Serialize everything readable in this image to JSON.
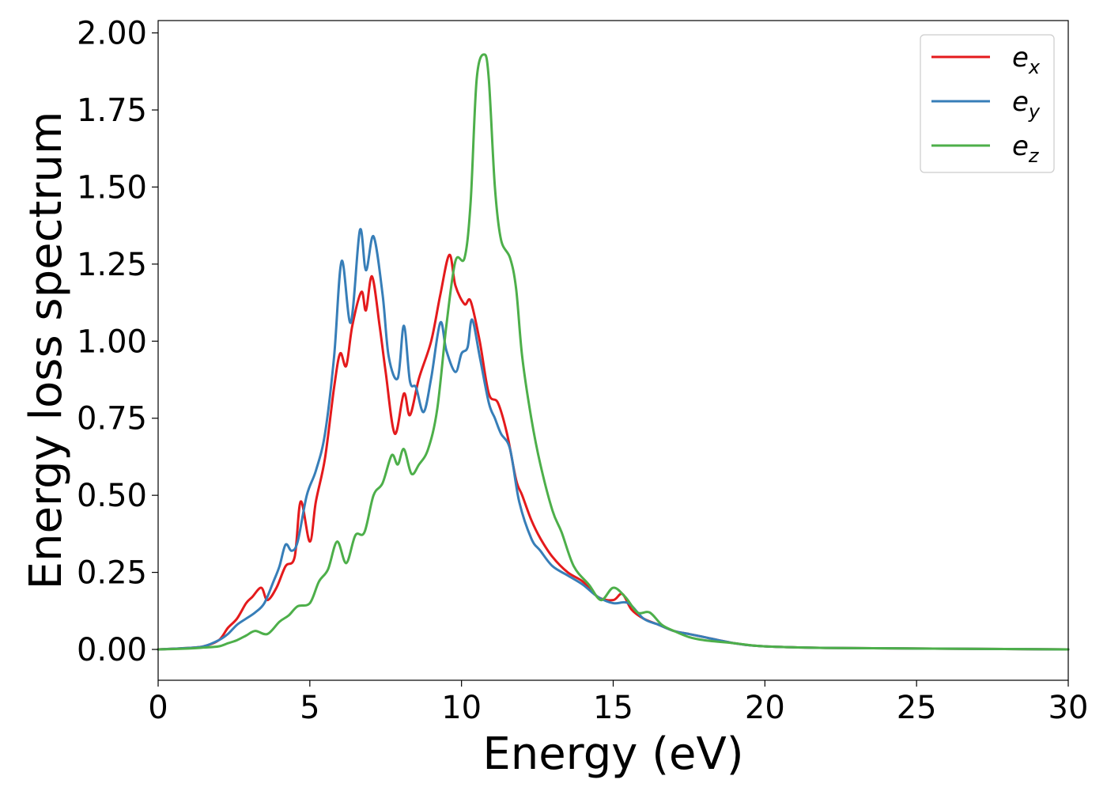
{
  "chart_data": {
    "type": "line",
    "title": "",
    "xlabel": "Energy (eV)",
    "ylabel": "Energy loss spectrum",
    "xlim": [
      0,
      30
    ],
    "ylim": [
      -0.1,
      2.04
    ],
    "xticks": [
      0,
      5,
      10,
      15,
      20,
      25,
      30
    ],
    "xtick_labels": [
      "0",
      "5",
      "10",
      "15",
      "20",
      "25",
      "30"
    ],
    "yticks": [
      0,
      0.25,
      0.5,
      0.75,
      1.0,
      1.25,
      1.5,
      1.75,
      2.0
    ],
    "ytick_labels": [
      "0.00",
      "0.25",
      "0.50",
      "0.75",
      "1.00",
      "1.25",
      "1.50",
      "1.75",
      "2.00"
    ],
    "grid": false,
    "legend_position": "top-right",
    "series": [
      {
        "name": "e_x",
        "base": "e",
        "sub": "x",
        "color": "#e41a1c",
        "x": [
          0,
          1.0,
          1.5,
          2.0,
          2.3,
          2.6,
          2.9,
          3.1,
          3.4,
          3.6,
          3.9,
          4.2,
          4.5,
          4.7,
          5.0,
          5.2,
          5.5,
          5.8,
          6.0,
          6.2,
          6.4,
          6.7,
          6.85,
          7.05,
          7.3,
          7.5,
          7.8,
          8.1,
          8.3,
          8.6,
          9.0,
          9.3,
          9.6,
          9.8,
          10.1,
          10.3,
          10.6,
          10.9,
          11.2,
          11.5,
          11.8,
          12.0,
          12.3,
          12.6,
          13.0,
          13.5,
          14.0,
          14.5,
          15.0,
          15.3,
          15.6,
          16.0,
          16.5,
          17.0,
          17.5,
          18.0,
          19.0,
          20.0,
          22.0,
          25.0,
          30.0
        ],
        "y": [
          0,
          0.005,
          0.01,
          0.03,
          0.07,
          0.1,
          0.15,
          0.17,
          0.2,
          0.16,
          0.2,
          0.27,
          0.3,
          0.48,
          0.35,
          0.48,
          0.62,
          0.85,
          0.96,
          0.92,
          1.05,
          1.16,
          1.1,
          1.21,
          1.05,
          0.9,
          0.7,
          0.83,
          0.76,
          0.88,
          1.0,
          1.15,
          1.28,
          1.18,
          1.12,
          1.13,
          1.0,
          0.83,
          0.8,
          0.7,
          0.55,
          0.5,
          0.42,
          0.36,
          0.3,
          0.25,
          0.22,
          0.17,
          0.16,
          0.18,
          0.13,
          0.1,
          0.08,
          0.06,
          0.05,
          0.04,
          0.02,
          0.01,
          0.005,
          0.003,
          0
        ]
      },
      {
        "name": "e_y",
        "base": "e",
        "sub": "y",
        "color": "#377eb8",
        "x": [
          0,
          1.0,
          1.5,
          2.0,
          2.3,
          2.6,
          2.9,
          3.2,
          3.5,
          3.8,
          4.0,
          4.2,
          4.4,
          4.6,
          4.9,
          5.2,
          5.5,
          5.8,
          6.05,
          6.35,
          6.65,
          6.85,
          7.1,
          7.4,
          7.6,
          7.9,
          8.1,
          8.3,
          8.5,
          8.75,
          9.0,
          9.3,
          9.5,
          9.8,
          10.0,
          10.2,
          10.35,
          10.6,
          10.9,
          11.1,
          11.3,
          11.6,
          11.9,
          12.3,
          12.6,
          13.0,
          13.5,
          14.0,
          14.5,
          15.0,
          15.5,
          16.0,
          16.5,
          17.0,
          17.5,
          18.0,
          19.0,
          20.0,
          22.0,
          25.0,
          30.0
        ],
        "y": [
          0,
          0.005,
          0.01,
          0.03,
          0.05,
          0.08,
          0.1,
          0.12,
          0.15,
          0.22,
          0.27,
          0.34,
          0.32,
          0.35,
          0.5,
          0.58,
          0.7,
          0.95,
          1.26,
          1.06,
          1.36,
          1.23,
          1.34,
          1.15,
          0.95,
          0.88,
          1.05,
          0.87,
          0.85,
          0.77,
          0.88,
          1.06,
          0.97,
          0.9,
          0.96,
          0.98,
          1.07,
          0.95,
          0.8,
          0.75,
          0.7,
          0.65,
          0.48,
          0.36,
          0.32,
          0.27,
          0.24,
          0.21,
          0.17,
          0.15,
          0.15,
          0.1,
          0.08,
          0.06,
          0.05,
          0.04,
          0.02,
          0.01,
          0.005,
          0.003,
          0
        ]
      },
      {
        "name": "e_z",
        "base": "e",
        "sub": "z",
        "color": "#4daf4a",
        "x": [
          0,
          1.0,
          1.5,
          2.0,
          2.3,
          2.6,
          2.9,
          3.2,
          3.6,
          4.0,
          4.3,
          4.6,
          5.0,
          5.3,
          5.6,
          5.9,
          6.2,
          6.5,
          6.8,
          7.1,
          7.4,
          7.7,
          7.9,
          8.1,
          8.35,
          8.6,
          8.9,
          9.2,
          9.5,
          9.8,
          10.1,
          10.3,
          10.5,
          10.75,
          10.9,
          11.1,
          11.3,
          11.6,
          11.8,
          12.0,
          12.3,
          12.6,
          13.0,
          13.3,
          13.7,
          14.2,
          14.6,
          15.0,
          15.4,
          15.8,
          16.2,
          16.6,
          17.0,
          17.5,
          18.0,
          19.0,
          20.0,
          22.0,
          25.0,
          30.0
        ],
        "y": [
          0,
          0.003,
          0.006,
          0.01,
          0.02,
          0.03,
          0.045,
          0.06,
          0.05,
          0.09,
          0.11,
          0.14,
          0.15,
          0.22,
          0.26,
          0.35,
          0.28,
          0.37,
          0.38,
          0.5,
          0.54,
          0.63,
          0.6,
          0.65,
          0.57,
          0.6,
          0.65,
          0.78,
          1.05,
          1.26,
          1.27,
          1.45,
          1.85,
          1.93,
          1.85,
          1.5,
          1.33,
          1.27,
          1.17,
          0.95,
          0.75,
          0.6,
          0.45,
          0.38,
          0.27,
          0.21,
          0.16,
          0.2,
          0.17,
          0.12,
          0.12,
          0.08,
          0.06,
          0.04,
          0.03,
          0.02,
          0.01,
          0.005,
          0.003,
          0
        ]
      }
    ]
  }
}
